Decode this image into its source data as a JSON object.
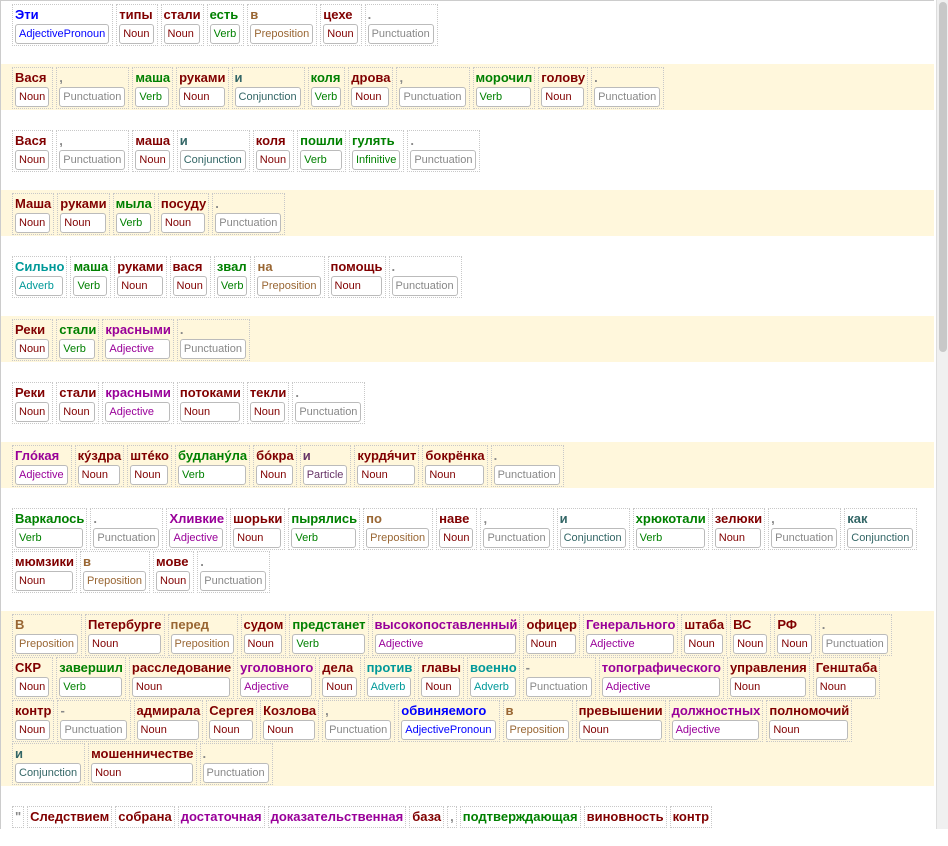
{
  "pos_colors": {
    "Noun": "#800000",
    "Verb": "#008000",
    "Infinitive": "#008000",
    "Preposition": "#996633",
    "Adjective": "#990099",
    "AdjectivePronoun": "#0000ff",
    "Conjunction": "#336666",
    "Adverb": "#009999",
    "Particle": "#663366",
    "Punctuation": "#888888"
  },
  "sentences": [
    [
      [
        "Эти",
        "AdjectivePronoun"
      ],
      [
        "типы",
        "Noun"
      ],
      [
        "стали",
        "Noun"
      ],
      [
        "есть",
        "Verb"
      ],
      [
        "в",
        "Preposition"
      ],
      [
        "цехе",
        "Noun"
      ],
      [
        ".",
        "Punctuation"
      ]
    ],
    [
      [
        "Вася",
        "Noun"
      ],
      [
        ",",
        "Punctuation"
      ],
      [
        "маша",
        "Verb"
      ],
      [
        "руками",
        "Noun"
      ],
      [
        "и",
        "Conjunction"
      ],
      [
        "коля",
        "Verb"
      ],
      [
        "дрова",
        "Noun"
      ],
      [
        ",",
        "Punctuation"
      ],
      [
        "морочил",
        "Verb"
      ],
      [
        "голову",
        "Noun"
      ],
      [
        ".",
        "Punctuation"
      ]
    ],
    [
      [
        "Вася",
        "Noun"
      ],
      [
        ",",
        "Punctuation"
      ],
      [
        "маша",
        "Noun"
      ],
      [
        "и",
        "Conjunction"
      ],
      [
        "коля",
        "Noun"
      ],
      [
        "пошли",
        "Verb"
      ],
      [
        "гулять",
        "Infinitive"
      ],
      [
        ".",
        "Punctuation"
      ]
    ],
    [
      [
        "Маша",
        "Noun"
      ],
      [
        "руками",
        "Noun"
      ],
      [
        "мыла",
        "Verb"
      ],
      [
        "посуду",
        "Noun"
      ],
      [
        ".",
        "Punctuation"
      ]
    ],
    [
      [
        "Сильно",
        "Adverb"
      ],
      [
        "маша",
        "Verb"
      ],
      [
        "руками",
        "Noun"
      ],
      [
        "вася",
        "Noun"
      ],
      [
        "звал",
        "Verb"
      ],
      [
        "на",
        "Preposition"
      ],
      [
        "помощь",
        "Noun"
      ],
      [
        ".",
        "Punctuation"
      ]
    ],
    [
      [
        "Реки",
        "Noun"
      ],
      [
        "стали",
        "Verb"
      ],
      [
        "красными",
        "Adjective"
      ],
      [
        ".",
        "Punctuation"
      ]
    ],
    [
      [
        "Реки",
        "Noun"
      ],
      [
        "стали",
        "Noun"
      ],
      [
        "красными",
        "Adjective"
      ],
      [
        "потоками",
        "Noun"
      ],
      [
        "текли",
        "Noun"
      ],
      [
        ".",
        "Punctuation"
      ]
    ],
    [
      [
        "Глóкая",
        "Adjective"
      ],
      [
        "кýздра",
        "Noun"
      ],
      [
        "штéко",
        "Noun"
      ],
      [
        "будланýла",
        "Verb"
      ],
      [
        "бóкра",
        "Noun"
      ],
      [
        "и",
        "Particle"
      ],
      [
        "курдя́чит",
        "Noun"
      ],
      [
        "бокрёнка",
        "Noun"
      ],
      [
        ".",
        "Punctuation"
      ]
    ],
    [
      [
        "Варкалось",
        "Verb"
      ],
      [
        ".",
        "Punctuation"
      ],
      [
        "Хливкие",
        "Adjective"
      ],
      [
        "шорьки",
        "Noun"
      ],
      [
        "пырялись",
        "Verb"
      ],
      [
        "по",
        "Preposition"
      ],
      [
        "наве",
        "Noun"
      ],
      [
        ",",
        "Punctuation"
      ],
      [
        "и",
        "Conjunction"
      ],
      [
        "хрюкотали",
        "Verb"
      ],
      [
        "зелюки",
        "Noun"
      ],
      [
        ",",
        "Punctuation"
      ],
      [
        "как",
        "Conjunction"
      ],
      [
        "мюмзики",
        "Noun"
      ],
      [
        "в",
        "Preposition"
      ],
      [
        "мове",
        "Noun"
      ],
      [
        ".",
        "Punctuation"
      ]
    ],
    [
      [
        "В",
        "Preposition"
      ],
      [
        "Петербурге",
        "Noun"
      ],
      [
        "перед",
        "Preposition"
      ],
      [
        "судом",
        "Noun"
      ],
      [
        "предстанет",
        "Verb"
      ],
      [
        "высокопоставленный",
        "Adjective"
      ],
      [
        "офицер",
        "Noun"
      ],
      [
        "Генерального",
        "Adjective"
      ],
      [
        "штаба",
        "Noun"
      ],
      [
        "ВС",
        "Noun"
      ],
      [
        "РФ",
        "Noun"
      ],
      [
        ".",
        "Punctuation"
      ],
      [
        "СКР",
        "Noun"
      ],
      [
        "завершил",
        "Verb"
      ],
      [
        "расследование",
        "Noun"
      ],
      [
        "уголовного",
        "Adjective"
      ],
      [
        "дела",
        "Noun"
      ],
      [
        "против",
        "Adverb"
      ],
      [
        "главы",
        "Noun"
      ],
      [
        "военно",
        "Adverb"
      ],
      [
        "-",
        "Punctuation"
      ],
      [
        "топографического",
        "Adjective"
      ],
      [
        "управления",
        "Noun"
      ],
      [
        "Генштаба",
        "Noun"
      ],
      [
        "контр",
        "Noun"
      ],
      [
        "-",
        "Punctuation"
      ],
      [
        "адмирала",
        "Noun"
      ],
      [
        "Сергея",
        "Noun"
      ],
      [
        "Козлова",
        "Noun"
      ],
      [
        ",",
        "Punctuation"
      ],
      [
        "обвиняемого",
        "AdjectivePronoun"
      ],
      [
        "в",
        "Preposition"
      ],
      [
        "превышении",
        "Noun"
      ],
      [
        "должностных",
        "Adjective"
      ],
      [
        "полномочий",
        "Noun"
      ],
      [
        "и",
        "Conjunction"
      ],
      [
        "мошенничестве",
        "Noun"
      ],
      [
        ".",
        "Punctuation"
      ]
    ],
    [
      [
        "\"",
        null,
        "#888888"
      ],
      [
        "Следствием",
        null,
        "#800000"
      ],
      [
        "собрана",
        null,
        "#800000"
      ],
      [
        "достаточная",
        null,
        "#990099"
      ],
      [
        "доказательственная",
        null,
        "#990099"
      ],
      [
        "база",
        null,
        "#800000"
      ],
      [
        ",",
        null,
        "#888888"
      ],
      [
        "подтверждающая",
        null,
        "#008000"
      ],
      [
        "виновность",
        null,
        "#800000"
      ],
      [
        "контр",
        null,
        "#800000"
      ]
    ]
  ]
}
